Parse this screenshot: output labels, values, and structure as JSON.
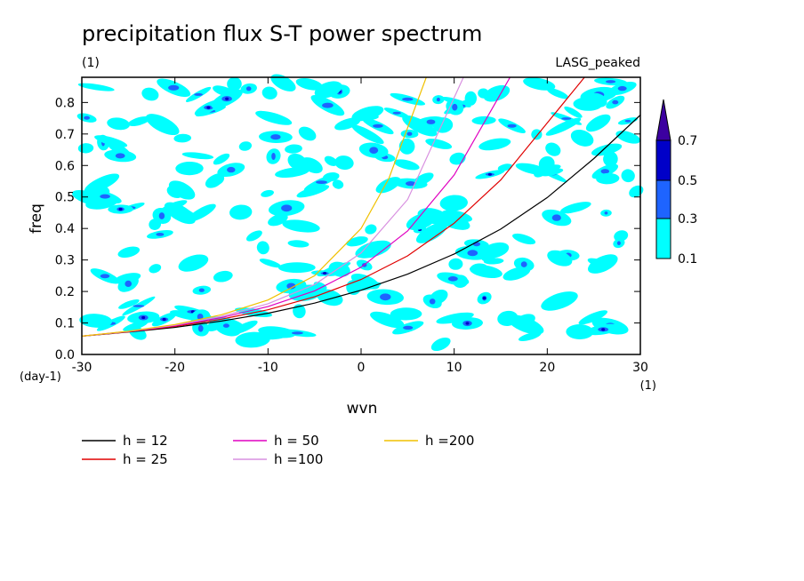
{
  "chart_data": {
    "type": "line",
    "title": "precipitation flux S-T power spectrum",
    "subtitle_left": "(1)",
    "subtitle_right": "LASG_peaked",
    "xlabel": "wvn",
    "ylabel": "freq",
    "x_unit": "(1)",
    "y_unit": "(day-1)",
    "xlim": [
      -30,
      30
    ],
    "ylim": [
      0,
      0.88
    ],
    "x_ticks": [
      -30,
      -20,
      -10,
      0,
      10,
      20,
      30
    ],
    "x_tick_labels": [
      "-30",
      "-20",
      "-10",
      "0",
      "10",
      "20",
      "30"
    ],
    "y_ticks": [
      0.0,
      0.1,
      0.2,
      0.3,
      0.4,
      0.5,
      0.6,
      0.7,
      0.8
    ],
    "y_tick_labels": [
      "0.0",
      "0.1",
      "0.2",
      "0.3",
      "0.4",
      "0.5",
      "0.6",
      "0.7",
      "0.8"
    ],
    "colorbar": {
      "levels": [
        "0.1",
        "0.3",
        "0.5",
        "0.7"
      ],
      "colors": [
        "#00ffff",
        "#1e64ff",
        "#0000c8",
        "#3c00a0"
      ]
    },
    "contour_fill_note": "cyan/blue speckled power contours across domain",
    "series": [
      {
        "name": "h = 12",
        "color": "#000000",
        "x": [
          -30,
          -25,
          -20,
          -15,
          -10,
          -5,
          0,
          5,
          10,
          15,
          20,
          25,
          30
        ],
        "y": [
          0.058,
          0.071,
          0.086,
          0.106,
          0.131,
          0.163,
          0.204,
          0.255,
          0.319,
          0.398,
          0.498,
          0.622,
          0.76
        ]
      },
      {
        "name": "h = 25",
        "color": "#e00000",
        "x": [
          -30,
          -25,
          -20,
          -15,
          -10,
          -5,
          0,
          5,
          10,
          15,
          20,
          24
        ],
        "y": [
          0.058,
          0.072,
          0.089,
          0.112,
          0.142,
          0.183,
          0.238,
          0.313,
          0.417,
          0.554,
          0.735,
          0.88
        ]
      },
      {
        "name": "h = 50",
        "color": "#e000c0",
        "x": [
          -30,
          -25,
          -20,
          -15,
          -10,
          -5,
          0,
          5,
          10,
          16
        ],
        "y": [
          0.058,
          0.073,
          0.091,
          0.117,
          0.152,
          0.202,
          0.277,
          0.392,
          0.57,
          0.88
        ]
      },
      {
        "name": "h =100",
        "color": "#d890e0",
        "x": [
          -30,
          -25,
          -20,
          -15,
          -10,
          -5,
          0,
          5,
          11
        ],
        "y": [
          0.058,
          0.073,
          0.093,
          0.121,
          0.161,
          0.222,
          0.322,
          0.492,
          0.88
        ]
      },
      {
        "name": "h =200",
        "color": "#f0c000",
        "x": [
          -30,
          -25,
          -20,
          -15,
          -10,
          -5,
          0,
          3,
          7
        ],
        "y": [
          0.058,
          0.074,
          0.095,
          0.126,
          0.173,
          0.25,
          0.4,
          0.56,
          0.88
        ]
      }
    ]
  }
}
